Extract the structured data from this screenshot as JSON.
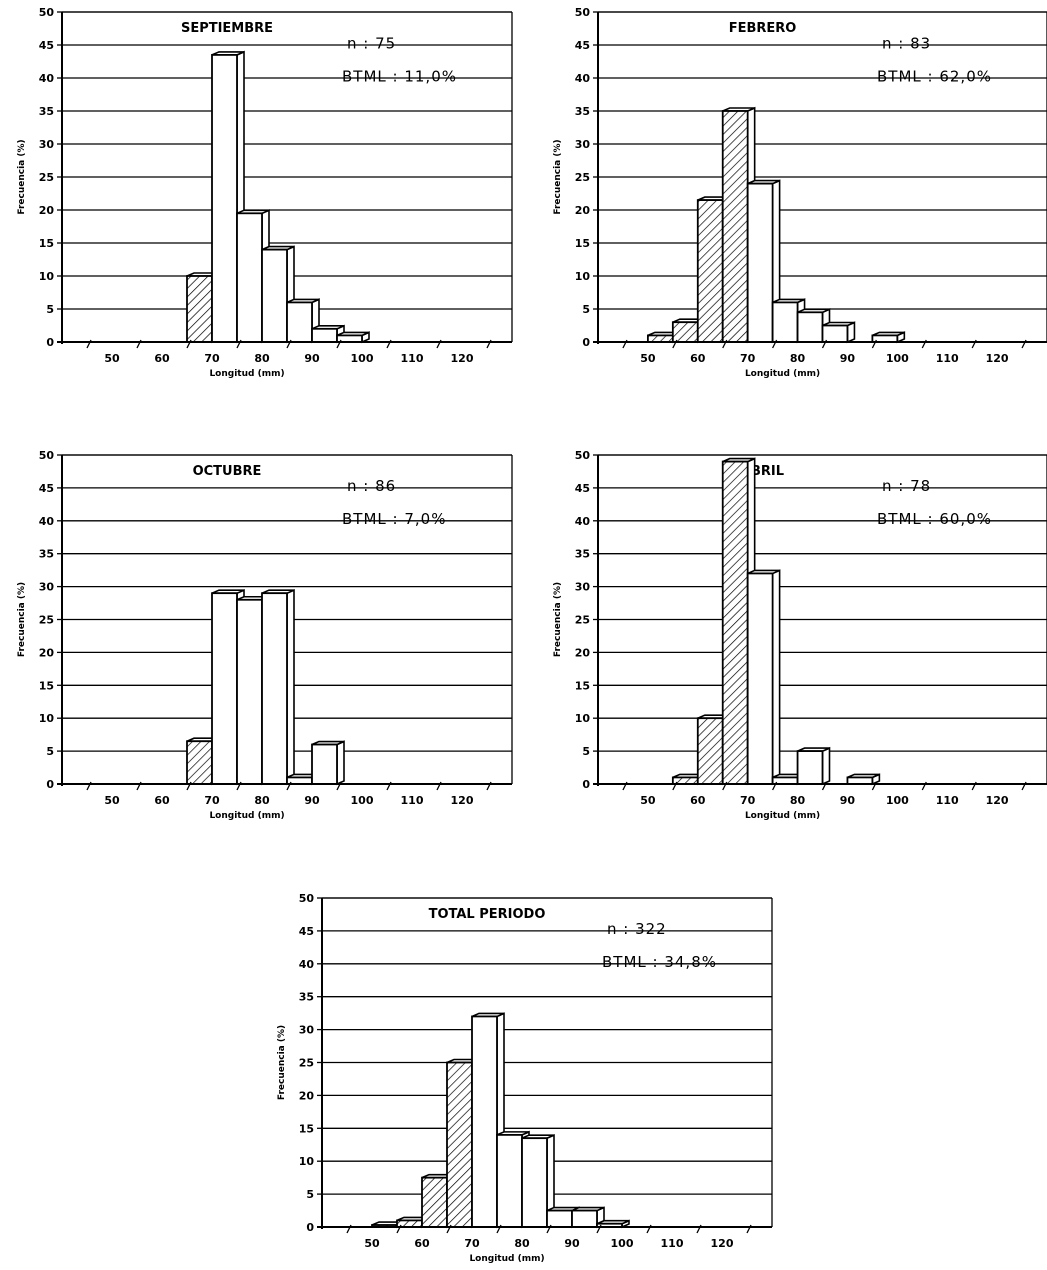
{
  "chart_data": [
    {
      "type": "bar",
      "title": "SEPTIEMBRE",
      "annotations": [
        "n : 75",
        "BTML : 11,0%"
      ],
      "xlabel": "Longitud (mm)",
      "ylabel": "Frecuencia (%)",
      "ylim": [
        0,
        50
      ],
      "xlim": [
        40,
        130
      ],
      "xticks": [
        "50",
        "60",
        "70",
        "80",
        "90",
        "100",
        "110",
        "120"
      ],
      "yticks": [
        "0",
        "5",
        "10",
        "15",
        "20",
        "25",
        "30",
        "35",
        "40",
        "45",
        "50"
      ],
      "bin_width": 5,
      "bins": [
        65,
        70,
        75,
        80,
        85,
        90,
        95
      ],
      "values": [
        10,
        43.5,
        19.5,
        14,
        6,
        2,
        1
      ],
      "hatched": [
        true,
        false,
        false,
        false,
        false,
        false,
        false
      ],
      "grid": true
    },
    {
      "type": "bar",
      "title": "FEBRERO",
      "annotations": [
        "n : 83",
        "BTML : 62,0%"
      ],
      "xlabel": "Longitud (mm)",
      "ylabel": "Frecuencia (%)",
      "ylim": [
        0,
        50
      ],
      "xlim": [
        40,
        130
      ],
      "xticks": [
        "50",
        "60",
        "70",
        "80",
        "90",
        "100",
        "110",
        "120"
      ],
      "yticks": [
        "0",
        "5",
        "10",
        "15",
        "20",
        "25",
        "30",
        "35",
        "40",
        "45",
        "50"
      ],
      "bin_width": 5,
      "bins": [
        50,
        55,
        60,
        65,
        70,
        75,
        80,
        85,
        95
      ],
      "values": [
        1,
        3,
        21.5,
        35,
        24,
        6,
        4.5,
        2.5,
        1
      ],
      "hatched": [
        true,
        true,
        true,
        true,
        false,
        false,
        false,
        false,
        false
      ],
      "grid": true
    },
    {
      "type": "bar",
      "title": "OCTUBRE",
      "annotations": [
        "n : 86",
        "BTML : 7,0%"
      ],
      "xlabel": "Longitud (mm)",
      "ylabel": "Frecuencia (%)",
      "ylim": [
        0,
        50
      ],
      "xlim": [
        40,
        130
      ],
      "xticks": [
        "50",
        "60",
        "70",
        "80",
        "90",
        "100",
        "110",
        "120"
      ],
      "yticks": [
        "0",
        "5",
        "10",
        "15",
        "20",
        "25",
        "30",
        "35",
        "40",
        "45",
        "50"
      ],
      "bin_width": 5,
      "bins": [
        65,
        70,
        75,
        80,
        85,
        90
      ],
      "values": [
        6.5,
        29,
        28,
        29,
        1,
        6
      ],
      "hatched": [
        true,
        false,
        false,
        false,
        false,
        false
      ],
      "grid": true
    },
    {
      "type": "bar",
      "title": "ABRIL",
      "annotations": [
        "n : 78",
        "BTML : 60,0%"
      ],
      "xlabel": "Longitud (mm)",
      "ylabel": "Frecuencia (%)",
      "ylim": [
        0,
        50
      ],
      "xlim": [
        40,
        130
      ],
      "xticks": [
        "50",
        "60",
        "70",
        "80",
        "90",
        "100",
        "110",
        "120"
      ],
      "yticks": [
        "0",
        "5",
        "10",
        "15",
        "20",
        "25",
        "30",
        "35",
        "40",
        "45",
        "50"
      ],
      "bin_width": 5,
      "bins": [
        55,
        60,
        65,
        70,
        75,
        80,
        90
      ],
      "values": [
        1,
        10,
        49,
        32,
        1,
        5,
        1
      ],
      "hatched": [
        true,
        true,
        true,
        false,
        false,
        false,
        false
      ],
      "grid": true
    },
    {
      "type": "bar",
      "title": "TOTAL PERIODO",
      "annotations": [
        "n : 322",
        "BTML : 34,8%"
      ],
      "xlabel": "Longitud (mm)",
      "ylabel": "Frecuencia (%)",
      "ylim": [
        0,
        50
      ],
      "xlim": [
        40,
        130
      ],
      "xticks": [
        "50",
        "60",
        "70",
        "80",
        "90",
        "100",
        "110",
        "120"
      ],
      "yticks": [
        "0",
        "5",
        "10",
        "15",
        "20",
        "25",
        "30",
        "35",
        "40",
        "45",
        "50"
      ],
      "bin_width": 5,
      "bins": [
        50,
        55,
        60,
        65,
        70,
        75,
        80,
        85,
        90,
        95
      ],
      "values": [
        0.3,
        1,
        7.5,
        25,
        32,
        14,
        13.5,
        2.5,
        2.5,
        0.5
      ],
      "hatched": [
        true,
        true,
        true,
        true,
        false,
        false,
        false,
        false,
        false,
        false
      ],
      "grid": true
    }
  ]
}
